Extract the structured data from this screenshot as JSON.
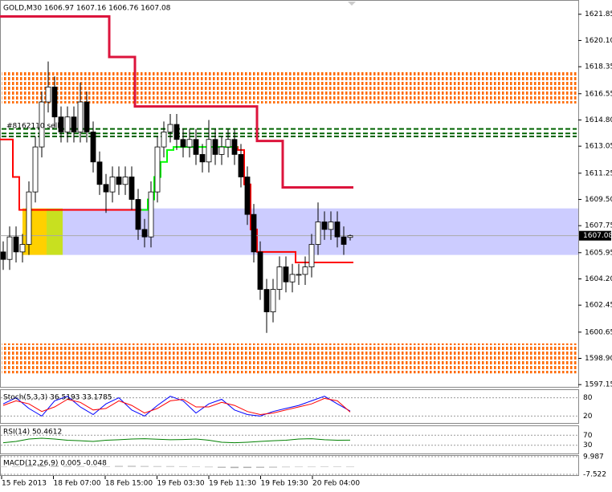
{
  "chart_data": {
    "type": "candlestick",
    "header": "GOLD,M30  1606.97 1607.16 1606.76 1607.08",
    "annotation": "#8162110 sell",
    "open": [
      1606,
      1605.5,
      1607,
      1606,
      1606.5,
      1610,
      1613,
      1616,
      1617,
      1615,
      1614,
      1615,
      1614,
      1616,
      1614,
      1612,
      1610.5,
      1610,
      1611,
      1610.5,
      1611,
      1609.5,
      1607.5,
      1607,
      1610,
      1613,
      1614,
      1614.5,
      1613.5,
      1613,
      1613.5,
      1612.5,
      1612,
      1613.5,
      1612.5,
      1613,
      1613.5,
      1612.5,
      1611,
      1608.5,
      1606,
      1603.5,
      1602,
      1603.5,
      1605,
      1604,
      1604.5,
      1604.5,
      1605,
      1606.5,
      1608,
      1607.5,
      1608,
      1607,
      1606.97
    ],
    "high": [
      1606.7,
      1607.7,
      1607.7,
      1607.2,
      1610.7,
      1613.7,
      1616.7,
      1618.7,
      1617.7,
      1615.7,
      1615.7,
      1615.7,
      1617.3,
      1616.7,
      1614.7,
      1612.7,
      1611.2,
      1611.7,
      1611.7,
      1611.7,
      1611.7,
      1610.2,
      1608.2,
      1610.7,
      1613.7,
      1614.7,
      1615.2,
      1615.2,
      1614.2,
      1614.2,
      1614.2,
      1613.2,
      1614.8,
      1614.2,
      1613.7,
      1614.2,
      1614.2,
      1613.2,
      1611.7,
      1609.2,
      1606.7,
      1604.2,
      1604.2,
      1605.7,
      1605.7,
      1605.2,
      1605.2,
      1605.7,
      1607.2,
      1609.3,
      1608.7,
      1608.7,
      1608.7,
      1607.7,
      1607.16
    ],
    "low": [
      1604.8,
      1604.8,
      1605.3,
      1605.3,
      1605.8,
      1609.3,
      1612.3,
      1615.3,
      1614.3,
      1613.3,
      1613.3,
      1613.3,
      1613.3,
      1613.3,
      1611.3,
      1609.8,
      1608.6,
      1609.3,
      1609.8,
      1609.8,
      1608.8,
      1606.8,
      1606.3,
      1606.3,
      1609.3,
      1612.3,
      1613.3,
      1612.8,
      1612.3,
      1612.3,
      1611.8,
      1611.3,
      1611.3,
      1611.8,
      1611.8,
      1612.3,
      1611.8,
      1610.3,
      1607.8,
      1605.3,
      1602.8,
      1600.6,
      1601.3,
      1602.8,
      1603.3,
      1603.3,
      1603.8,
      1603.8,
      1604.3,
      1605.8,
      1606.8,
      1606.8,
      1606.3,
      1605.8,
      1606.76
    ],
    "close": [
      1605.5,
      1607,
      1606,
      1606.5,
      1610,
      1613,
      1616,
      1617,
      1615,
      1614,
      1615,
      1614,
      1616,
      1614,
      1612,
      1610.5,
      1610,
      1611,
      1610.5,
      1611,
      1609.5,
      1607.5,
      1607,
      1610,
      1613,
      1614,
      1614.5,
      1613.5,
      1613,
      1613.5,
      1612.5,
      1612,
      1613.5,
      1612.5,
      1613,
      1613.5,
      1612.5,
      1611,
      1608.5,
      1606,
      1603.5,
      1602,
      1603.5,
      1605,
      1604,
      1604.5,
      1604.5,
      1605,
      1606.5,
      1608,
      1607.5,
      1608,
      1607,
      1606.5,
      1607.08
    ],
    "upper_trail": [
      1621.7,
      1621.7,
      1621.7,
      1621.7,
      1621.7,
      1621.7,
      1621.7,
      1621.7,
      1621.7,
      1621.7,
      1621.7,
      1621.7,
      1621.7,
      1621.7,
      1621.7,
      1621.7,
      1621.7,
      1619,
      1619,
      1619,
      1619,
      1615.7,
      1615.7,
      1615.7,
      1615.7,
      1615.7,
      1615.7,
      1615.7,
      1615.7,
      1615.7,
      1615.7,
      1615.7,
      1615.7,
      1615.7,
      1615.7,
      1615.7,
      1615.7,
      1615.7,
      1615.7,
      1615.7,
      1613.4,
      1613.4,
      1613.4,
      1613.4,
      1610.3,
      1610.3,
      1610.3,
      1610.3,
      1610.3,
      1610.3,
      1610.3,
      1610.3,
      1610.3,
      1610.3,
      1610.3
    ],
    "trail_red": [
      1613.5,
      1613.5,
      1611,
      1608.8,
      1608.8,
      1608.8,
      1608.8,
      1608.8,
      1608.8,
      1608.8,
      1608.8,
      1608.8,
      1608.8,
      1608.8,
      1608.8,
      1608.8,
      1608.8,
      1608.8,
      1608.8,
      1608.8,
      1608.8,
      1608.8,
      1608.8,
      null,
      null,
      null,
      null,
      null,
      null,
      null,
      null,
      null,
      null,
      null,
      null,
      null,
      1613,
      1612.8,
      1610.5,
      1607.5,
      1606,
      1606,
      1606,
      1606,
      1606,
      1606,
      1605.3,
      1605.3,
      1605.3,
      1605.3,
      1605.3,
      1605.3,
      1605.3,
      1605.3,
      1605.3
    ],
    "trail_green": [
      null,
      null,
      null,
      null,
      null,
      null,
      null,
      null,
      null,
      null,
      null,
      null,
      null,
      null,
      null,
      null,
      null,
      null,
      null,
      null,
      null,
      null,
      1608.8,
      1609.5,
      1611,
      1612,
      1612.8,
      1613,
      1613,
      1613,
      1613,
      1613,
      1613,
      1613,
      1613,
      1613,
      1613,
      null,
      null,
      null,
      null,
      null,
      null,
      null,
      null,
      null,
      null,
      null,
      null,
      null,
      null,
      null,
      null,
      null,
      null
    ],
    "resistance_zone": [
      1615.9,
      1618.0
    ],
    "support_zone": [
      1597.9,
      1599.9
    ],
    "order_lines": [
      1614.2,
      1613.9,
      1613.7
    ],
    "range_box": [
      1605.8,
      1608.9
    ],
    "ylim": [
      1597.0,
      1622.8
    ],
    "yticks": [
      1621.85,
      {
        "value": 1620.1,
        "label": "1620.10"
      },
      1618.35,
      1616.55,
      {
        "value": 1614.8,
        "label": "1614.80"
      },
      1613.05,
      1611.25,
      {
        "value": 1609.5,
        "label": "1609.50"
      },
      1607.75,
      1605.95,
      {
        "value": 1604.2,
        "label": "1604.20"
      },
      1602.45,
      1600.65,
      {
        "value": 1598.9,
        "label": "1598.90"
      },
      1597.15
    ],
    "xlabels": [
      "15 Feb 2013",
      "18 Feb 07:00",
      "18 Feb 15:00",
      "19 Feb 03:30",
      "19 Feb 11:30",
      "19 Feb 19:30",
      "20 Feb 04:00"
    ],
    "stoch": {
      "title": "Stoch(5,3,3) 36.5193 33.1785",
      "ylim": [
        0,
        100
      ],
      "yticks": [
        80,
        20
      ],
      "series": [
        {
          "name": "main",
          "color": "#0000ff",
          "values": [
            60,
            80,
            45,
            20,
            70,
            85,
            50,
            25,
            60,
            80,
            40,
            20,
            55,
            85,
            70,
            30,
            60,
            75,
            40,
            25,
            20,
            35,
            45,
            55,
            70,
            85,
            60,
            36.5
          ]
        },
        {
          "name": "signal",
          "color": "#ff0000",
          "values": [
            55,
            70,
            60,
            35,
            50,
            75,
            65,
            40,
            45,
            70,
            55,
            30,
            45,
            70,
            75,
            50,
            50,
            65,
            55,
            35,
            25,
            30,
            40,
            50,
            60,
            78,
            70,
            33.2
          ]
        }
      ]
    },
    "rsi": {
      "title": "RSI(14) 50.4612",
      "ylim": [
        0,
        100
      ],
      "yticks": [
        70,
        30
      ],
      "color": "#008000",
      "values": [
        40,
        45,
        55,
        58,
        55,
        50,
        48,
        45,
        50,
        52,
        55,
        56,
        54,
        52,
        53,
        55,
        50,
        42,
        40,
        42,
        45,
        48,
        50,
        55,
        56,
        52,
        50,
        50.5
      ]
    },
    "macd": {
      "title": "MACD(12,26,9) 0.005 -0.048",
      "ylim": [
        -7.522,
        9.987
      ],
      "yticks": [
        9.987,
        -7.522
      ],
      "color": "#b0b0b0",
      "values": [
        0,
        0.5,
        1,
        1.2,
        1,
        0.8,
        0.6,
        0.3,
        0.5,
        0.8,
        0.9,
        0.7,
        0.6,
        0.6,
        0.5,
        0.2,
        -0.5,
        -1,
        -1.3,
        -1.2,
        -1,
        -0.8,
        -0.5,
        -0.2,
        0,
        0.1,
        0.05,
        0.005
      ]
    }
  }
}
